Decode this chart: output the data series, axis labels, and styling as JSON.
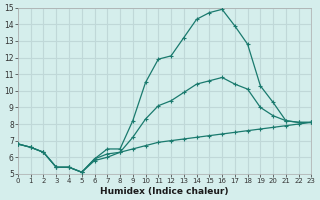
{
  "xlabel": "Humidex (Indice chaleur)",
  "ylabel": "",
  "bg_color": "#d5eeec",
  "grid_color": "#c0d8d8",
  "line_color": "#1a7a6e",
  "xlim": [
    0,
    23
  ],
  "ylim": [
    5,
    15
  ],
  "xticks": [
    0,
    1,
    2,
    3,
    4,
    5,
    6,
    7,
    8,
    9,
    10,
    11,
    12,
    13,
    14,
    15,
    16,
    17,
    18,
    19,
    20,
    21,
    22,
    23
  ],
  "yticks": [
    5,
    6,
    7,
    8,
    9,
    10,
    11,
    12,
    13,
    14,
    15
  ],
  "line1_x": [
    0,
    1,
    2,
    3,
    4,
    5,
    6,
    7,
    8,
    9,
    10,
    11,
    12,
    13,
    14,
    15,
    16,
    17,
    18,
    19,
    20,
    21,
    22,
    23
  ],
  "line1_y": [
    6.8,
    6.6,
    6.3,
    5.4,
    5.4,
    5.1,
    5.9,
    6.5,
    6.5,
    8.2,
    10.5,
    11.9,
    12.1,
    13.2,
    14.3,
    14.7,
    14.9,
    13.9,
    12.8,
    10.3,
    9.3,
    8.2,
    8.1,
    8.1
  ],
  "line2_x": [
    0,
    1,
    2,
    3,
    4,
    5,
    6,
    7,
    8,
    9,
    10,
    11,
    12,
    13,
    14,
    15,
    16,
    17,
    18,
    19,
    20,
    21,
    22,
    23
  ],
  "line2_y": [
    6.8,
    6.6,
    6.3,
    5.4,
    5.4,
    5.1,
    5.9,
    6.2,
    6.3,
    7.2,
    8.3,
    9.1,
    9.4,
    9.9,
    10.4,
    10.6,
    10.8,
    10.4,
    10.1,
    9.0,
    8.5,
    8.2,
    8.1,
    8.1
  ],
  "line3_x": [
    0,
    1,
    2,
    3,
    4,
    5,
    6,
    7,
    8,
    9,
    10,
    11,
    12,
    13,
    14,
    15,
    16,
    17,
    18,
    19,
    20,
    21,
    22,
    23
  ],
  "line3_y": [
    6.8,
    6.6,
    6.3,
    5.4,
    5.4,
    5.1,
    5.8,
    6.0,
    6.3,
    6.5,
    6.7,
    6.9,
    7.0,
    7.1,
    7.2,
    7.3,
    7.4,
    7.5,
    7.6,
    7.7,
    7.8,
    7.9,
    8.0,
    8.1
  ]
}
